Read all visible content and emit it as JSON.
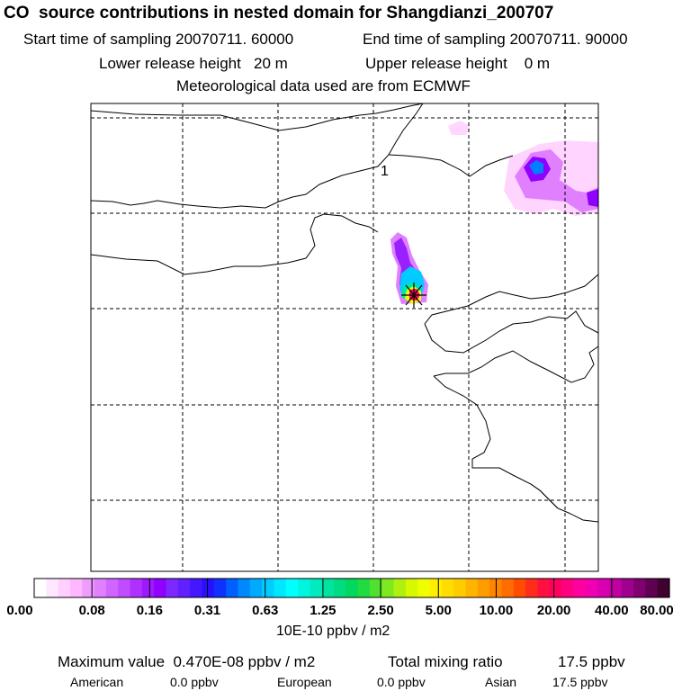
{
  "header": {
    "title": "CO  source contributions in nested domain for Shangdianzi_200707",
    "start_label": "Start time of sampling 20070711. 60000",
    "end_label": "End time of sampling 20070711. 90000",
    "lower_label": "Lower release height   20 m",
    "upper_label": "Upper release height    0 m",
    "met_label": "Meteorological data used are from ECMWF"
  },
  "map": {
    "marker_label": "1",
    "receptor": "Shangdianzi",
    "colors": {
      "coast": "#000000",
      "grid": "#000000",
      "plume_low": "#ff80ff",
      "plume_mid": "#8a2be2",
      "plume_high": "#00e5ff",
      "marker": "#ff0000"
    }
  },
  "colorbar": {
    "ticks": [
      "0.00",
      "0.08",
      "0.16",
      "0.31",
      "0.63",
      "1.25",
      "2.50",
      "5.00",
      "10.00",
      "20.00",
      "40.00",
      "80.00"
    ],
    "colors": [
      "#ffffff",
      "#ffe8ff",
      "#ffd0ff",
      "#ffb8ff",
      "#f09cff",
      "#e080ff",
      "#d066ff",
      "#c04cff",
      "#b030ff",
      "#a018ff",
      "#9000ff",
      "#7c28ff",
      "#6020ff",
      "#4418ff",
      "#2810ff",
      "#1030ff",
      "#0060ff",
      "#0088ff",
      "#00aaff",
      "#00ccff",
      "#00e8ff",
      "#00ffff",
      "#00f5e0",
      "#00ecc0",
      "#00e4a0",
      "#00dc80",
      "#00d860",
      "#20dc40",
      "#50e030",
      "#80e820",
      "#b0f010",
      "#d8f800",
      "#f0ff00",
      "#ffee00",
      "#ffdd00",
      "#ffcc00",
      "#ffb400",
      "#ff9c00",
      "#ff8400",
      "#ff6c00",
      "#ff4c00",
      "#ff2c1c",
      "#ff1040",
      "#ff0060",
      "#ff0080",
      "#ff00a0",
      "#f000b0",
      "#d800b0",
      "#c000a0",
      "#a00090",
      "#800070",
      "#600050",
      "#400030"
    ],
    "units": "10E-10 ppbv / m2"
  },
  "footer": {
    "max_label": "Maximum value  0.470E-08 ppbv / m2",
    "total_label": "Total mixing ratio",
    "total_value": "17.5 ppbv",
    "regions": [
      {
        "name": "American",
        "value": "0.0 ppbv"
      },
      {
        "name": "European",
        "value": "0.0 ppbv"
      },
      {
        "name": "Asian",
        "value": "17.5 ppbv"
      }
    ]
  }
}
